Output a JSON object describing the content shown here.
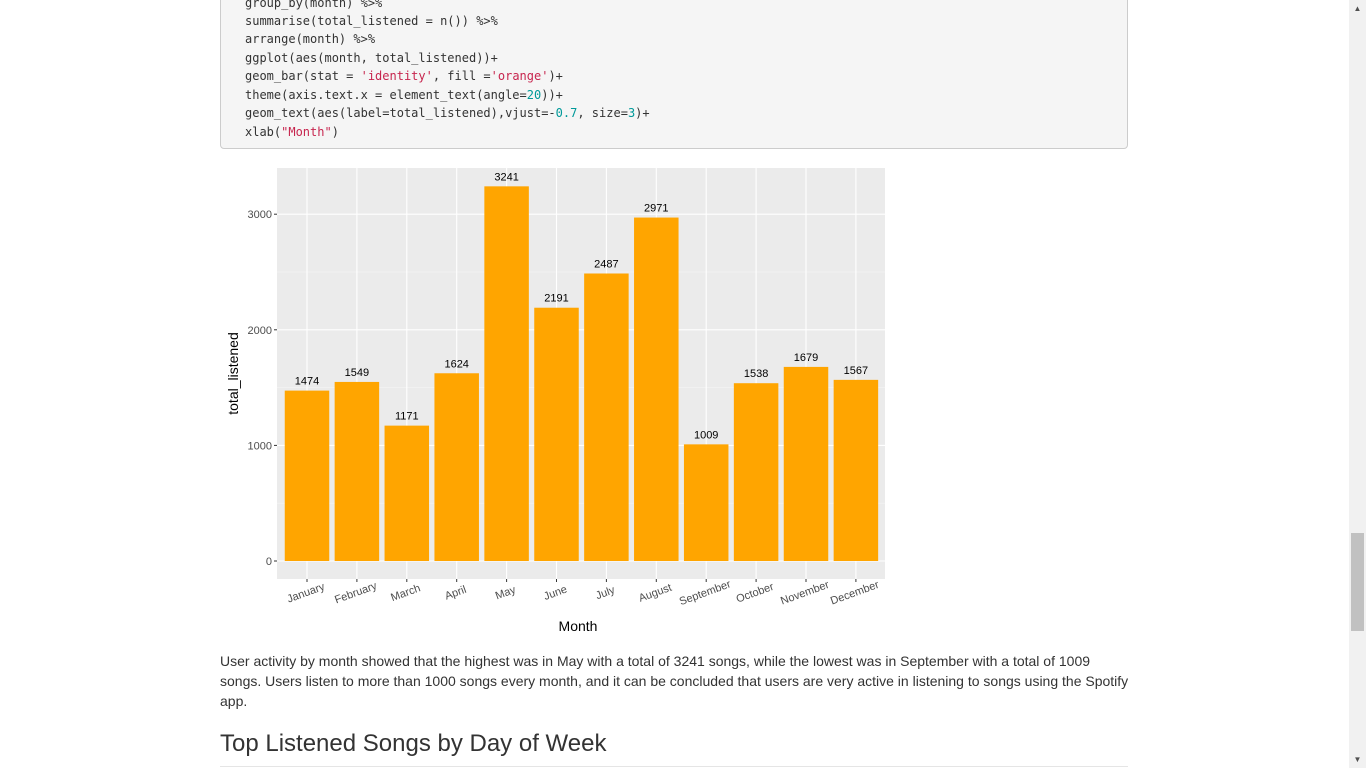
{
  "code": {
    "lines": [
      "group_by(month) %>%",
      "summarise(total_listened = n()) %>%",
      "arrange(month) %>%",
      "ggplot(aes(month, total_listened))+",
      "geom_bar(stat = ",
      "'identity'",
      ", fill =",
      "'orange'",
      ")+",
      "theme(axis.text.x = element_text(angle=",
      "20",
      "))+",
      "geom_text(aes(label=total_listened),vjust=-",
      "0.7",
      ", size=",
      "3",
      ")+",
      "xlab(",
      "\"Month\"",
      ")"
    ]
  },
  "chart_data": {
    "type": "bar",
    "categories": [
      "January",
      "February",
      "March",
      "April",
      "May",
      "June",
      "July",
      "August",
      "September",
      "October",
      "November",
      "December"
    ],
    "values": [
      1474,
      1549,
      1171,
      1624,
      3241,
      2191,
      2487,
      2971,
      1009,
      1538,
      1679,
      1567
    ],
    "xlabel": "Month",
    "ylabel": "total_listened",
    "ylim": [
      0,
      3400
    ],
    "yticks": [
      0,
      1000,
      2000,
      3000
    ],
    "grid": true,
    "bar_color": "#ffa500",
    "panel_color": "#ebebeb"
  },
  "paragraph": "User activity by month showed that the highest was in May with a total of 3241 songs, while the lowest was in September with a total of 1009 songs. Users listen to more than 1000 songs every month, and it can be concluded that users are very active in listening to songs using the Spotify app.",
  "heading": "Top Listened Songs by Day of Week"
}
